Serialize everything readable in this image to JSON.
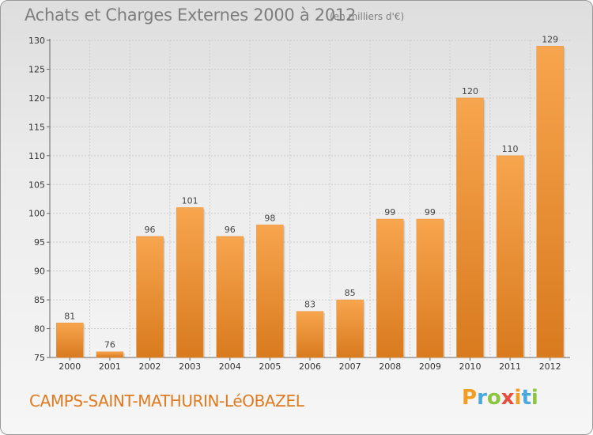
{
  "header": {
    "title": "Achats et Charges Externes 2000 à 2012",
    "subtitle": "(en milliers d'€)"
  },
  "footer": {
    "commune": "CAMPS-SAINT-MATHURIN-LéOBAZEL",
    "logo_text": "Proxiti"
  },
  "colors": {
    "bar_light": "#f7a54e",
    "bar_dark": "#d97a1e",
    "accent": "#e07a1f",
    "grid": "#cccccc"
  },
  "chart_data": {
    "type": "bar",
    "title": "Achats et Charges Externes 2000 à 2012",
    "subtitle": "(en milliers d'€)",
    "categories": [
      "2000",
      "2001",
      "2002",
      "2003",
      "2004",
      "2005",
      "2006",
      "2007",
      "2008",
      "2009",
      "2010",
      "2011",
      "2012"
    ],
    "values": [
      81,
      76,
      96,
      101,
      96,
      98,
      83,
      85,
      99,
      99,
      120,
      110,
      129
    ],
    "ylim": [
      75,
      130
    ],
    "yticks": [
      75,
      80,
      85,
      90,
      95,
      100,
      105,
      110,
      115,
      120,
      125,
      130
    ],
    "grid": true,
    "xlabel": "",
    "ylabel": ""
  }
}
